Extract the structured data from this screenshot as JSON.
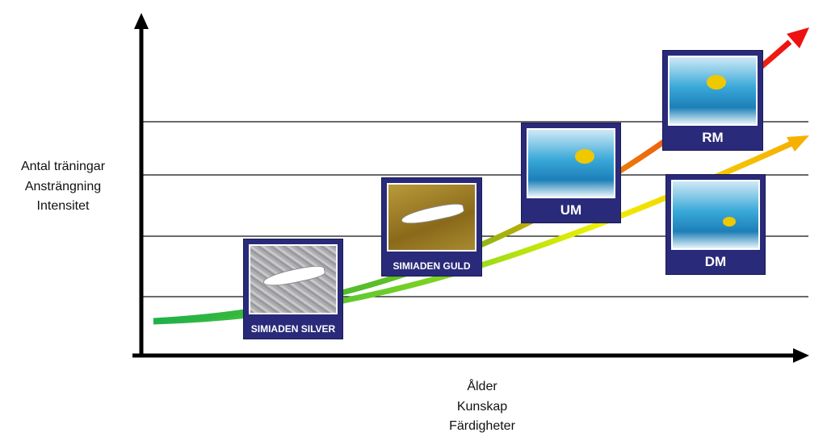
{
  "y_axis_label": [
    "Antal träningar",
    "Ansträngning",
    "Intensitet"
  ],
  "x_axis_label": [
    "Ålder",
    "Kunskap",
    "Färdigheter"
  ],
  "cards": [
    {
      "label": "SIMIADEN SILVER",
      "icon": "swimmer-silver"
    },
    {
      "label": "SIMIADEN GULD",
      "icon": "swimmer-gold"
    },
    {
      "label": "UM",
      "icon": "swimmer-photo"
    },
    {
      "label": "RM",
      "icon": "swimmer-photo"
    },
    {
      "label": "DM",
      "icon": "swimmer-photo"
    }
  ],
  "colors": {
    "card": "#2a2a7a",
    "start": "#1fb24a",
    "end_upper": "#ee1111",
    "end_lower": "#f5b800"
  }
}
